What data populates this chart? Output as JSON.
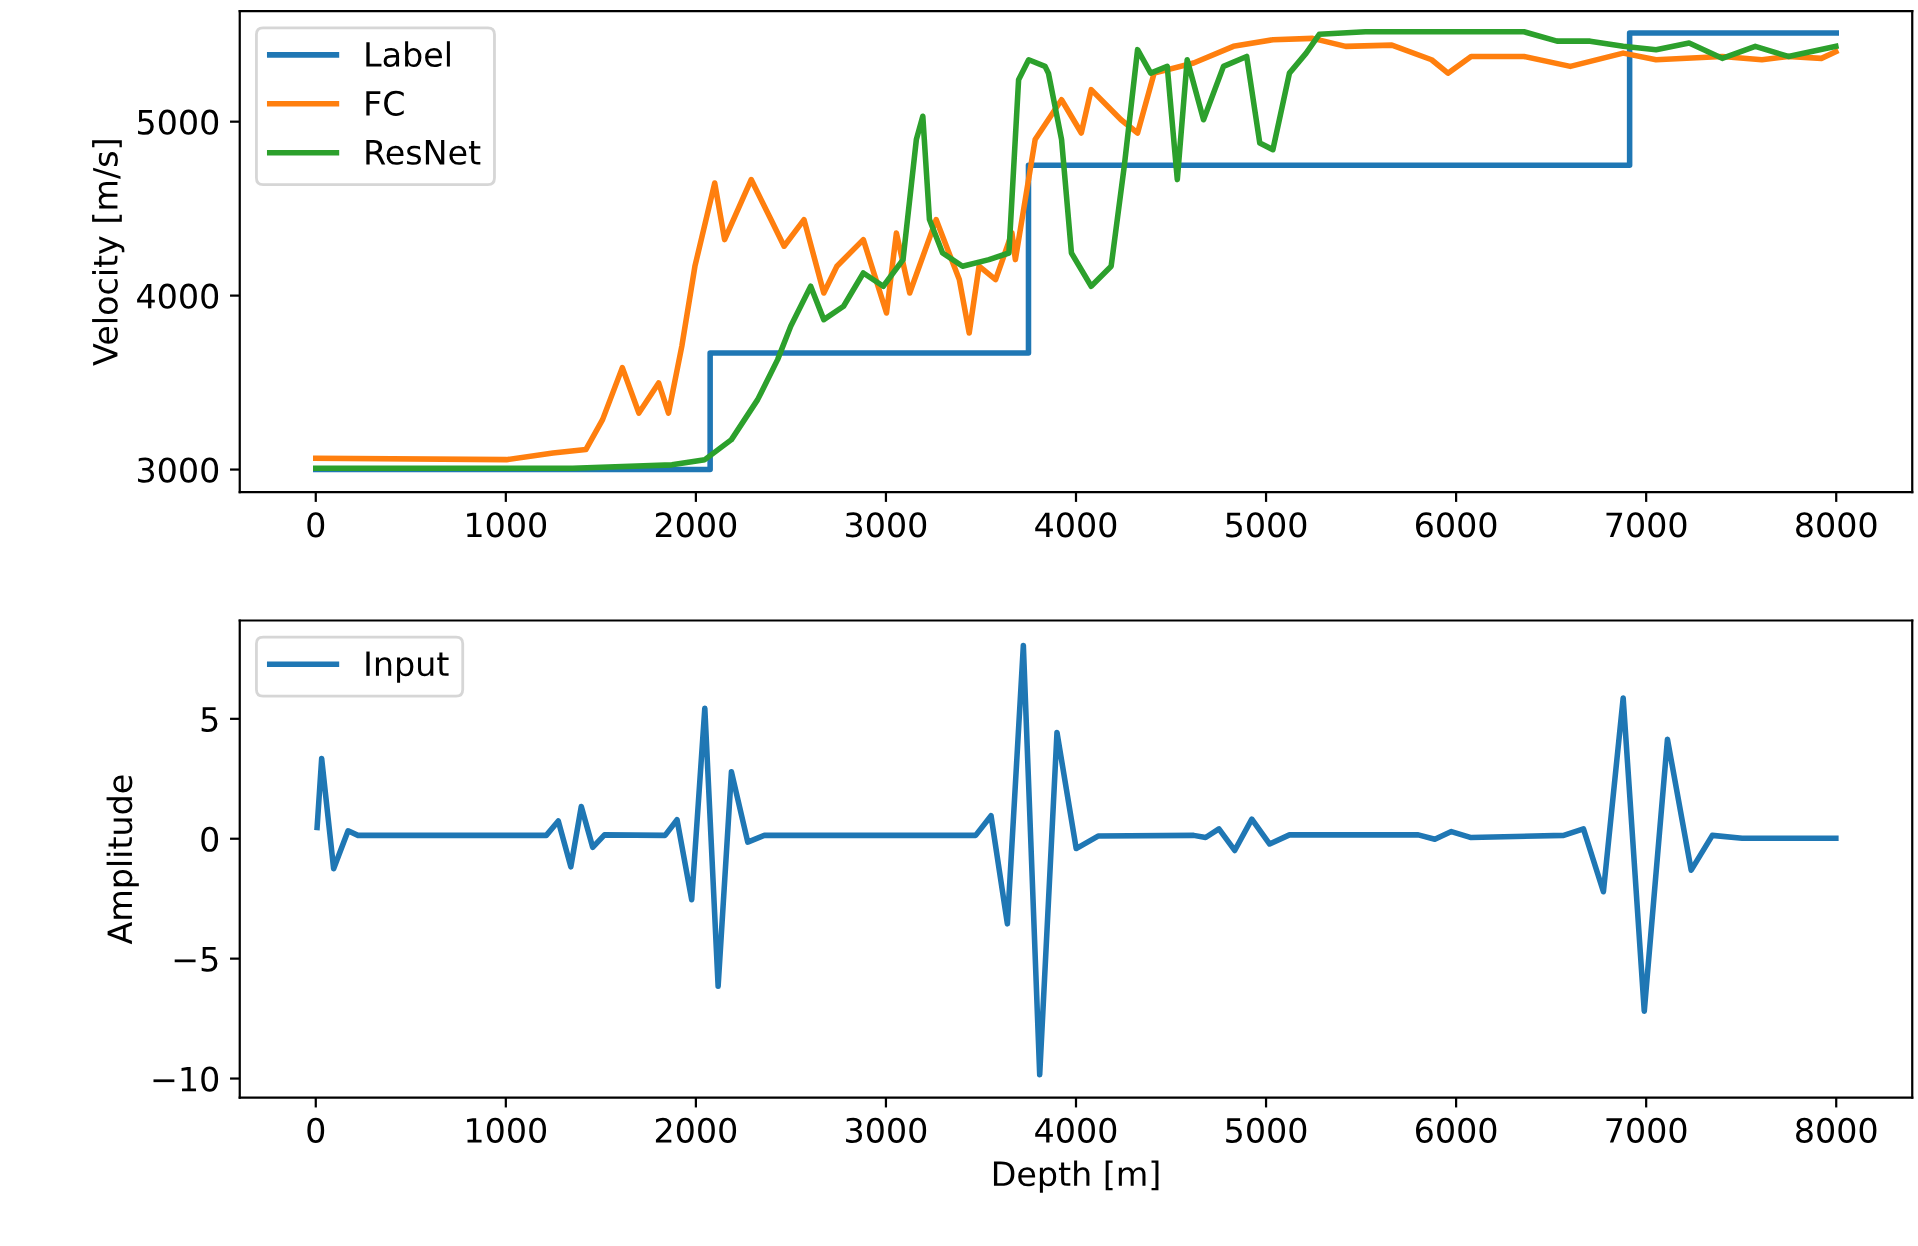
{
  "chart_data": [
    {
      "type": "line",
      "ylabel": "Velocity [m/s]",
      "xlim": [
        -400,
        8400
      ],
      "xticks": [
        0,
        1000,
        2000,
        3000,
        4000,
        5000,
        6000,
        7000,
        8000
      ],
      "ylim": [
        2870,
        5635
      ],
      "yticks": [
        3000,
        4000,
        5000
      ],
      "legend": "top left",
      "grid": false,
      "series": [
        {
          "name": "Label",
          "color": "#1f77b4",
          "type": "step",
          "x": [
            0,
            2075,
            3750,
            6913,
            8000
          ],
          "values": [
            3000,
            3670,
            4750,
            5510,
            5510
          ]
        },
        {
          "name": "FC",
          "color": "#ff7f0e",
          "x": [
            0,
            1004,
            1248,
            1421,
            1509,
            1613,
            1700,
            1804,
            1856,
            1926,
            1995,
            2099,
            2151,
            2291,
            2395,
            2464,
            2569,
            2673,
            2742,
            2881,
            3003,
            3055,
            3125,
            3264,
            3386,
            3438,
            3490,
            3577,
            3663,
            3681,
            3785,
            3924,
            4028,
            4080,
            4237,
            4324,
            4411,
            4619,
            4828,
            5036,
            5245,
            5419,
            5662,
            5871,
            5957,
            6079,
            6357,
            6601,
            6879,
            7052,
            7400,
            7609,
            7748,
            7922,
            7998
          ],
          "values": [
            3065,
            3057,
            3095,
            3115,
            3287,
            3586,
            3325,
            3498,
            3325,
            3709,
            4169,
            4647,
            4322,
            4667,
            4437,
            4284,
            4437,
            4015,
            4169,
            4322,
            3900,
            4360,
            4015,
            4437,
            4092,
            3785,
            4169,
            4092,
            4360,
            4207,
            4897,
            5126,
            4935,
            5184,
            5011,
            4935,
            5279,
            5337,
            5433,
            5471,
            5479,
            5433,
            5440,
            5356,
            5279,
            5375,
            5375,
            5318,
            5394,
            5356,
            5375,
            5356,
            5375,
            5364,
            5402
          ]
        },
        {
          "name": "ResNet",
          "color": "#2ca02c",
          "x": [
            0,
            1352,
            1874,
            2047,
            2187,
            2325,
            2430,
            2499,
            2604,
            2673,
            2777,
            2881,
            2986,
            3090,
            3160,
            3194,
            3229,
            3298,
            3403,
            3542,
            3647,
            3698,
            3751,
            3837,
            3855,
            3924,
            3976,
            4080,
            4185,
            4254,
            4324,
            4393,
            4480,
            4533,
            4585,
            4671,
            4776,
            4898,
            4967,
            5036,
            5123,
            5211,
            5280,
            5523,
            6357,
            6531,
            6705,
            6879,
            7052,
            7226,
            7400,
            7574,
            7748,
            7998
          ],
          "values": [
            3008,
            3008,
            3027,
            3057,
            3172,
            3402,
            3632,
            3824,
            4054,
            3862,
            3939,
            4130,
            4054,
            4207,
            4897,
            5031,
            4437,
            4245,
            4169,
            4207,
            4245,
            5241,
            5356,
            5318,
            5279,
            4897,
            4245,
            4054,
            4169,
            4744,
            5414,
            5279,
            5318,
            4667,
            5356,
            5011,
            5318,
            5375,
            4877,
            4839,
            5279,
            5394,
            5502,
            5517,
            5517,
            5463,
            5463,
            5433,
            5414,
            5452,
            5364,
            5433,
            5375,
            5433
          ]
        }
      ]
    },
    {
      "type": "line",
      "xlabel": "Depth [m]",
      "ylabel": "Amplitude",
      "xlim": [
        -400,
        8400
      ],
      "xticks": [
        0,
        1000,
        2000,
        3000,
        4000,
        5000,
        6000,
        7000,
        8000
      ],
      "ylim": [
        -10.8,
        9.1
      ],
      "yticks": [
        {
          "value": -10,
          "label": "−10"
        },
        {
          "value": -5,
          "label": "−5"
        },
        0,
        5
      ],
      "legend": "top left",
      "grid": false,
      "series": [
        {
          "name": "Input",
          "color": "#1f77b4",
          "x": [
            7,
            31,
            94,
            170,
            222,
            1213,
            1276,
            1342,
            1397,
            1457,
            1519,
            1838,
            1901,
            1978,
            2047,
            2117,
            2187,
            2273,
            2360,
            3472,
            3553,
            3639,
            3723,
            3809,
            3900,
            4001,
            4116,
            4619,
            4682,
            4752,
            4835,
            4925,
            5019,
            5123,
            5801,
            5888,
            5975,
            6079,
            6566,
            6670,
            6775,
            6879,
            6990,
            7112,
            7237,
            7348,
            7505,
            7998
          ],
          "values": [
            0.47,
            3.34,
            -1.25,
            0.33,
            0.14,
            0.14,
            0.74,
            -1.17,
            1.34,
            -0.36,
            0.16,
            0.14,
            0.79,
            -2.54,
            5.44,
            -6.15,
            2.79,
            -0.14,
            0.14,
            0.14,
            0.96,
            -3.55,
            8.06,
            -9.84,
            4.43,
            -0.41,
            0.11,
            0.14,
            0.05,
            0.41,
            -0.49,
            0.82,
            -0.22,
            0.16,
            0.16,
            -0.02,
            0.3,
            0.05,
            0.14,
            0.41,
            -2.21,
            5.87,
            -7.19,
            4.15,
            -1.31,
            0.14,
            0.02,
            0.02
          ]
        }
      ]
    }
  ]
}
